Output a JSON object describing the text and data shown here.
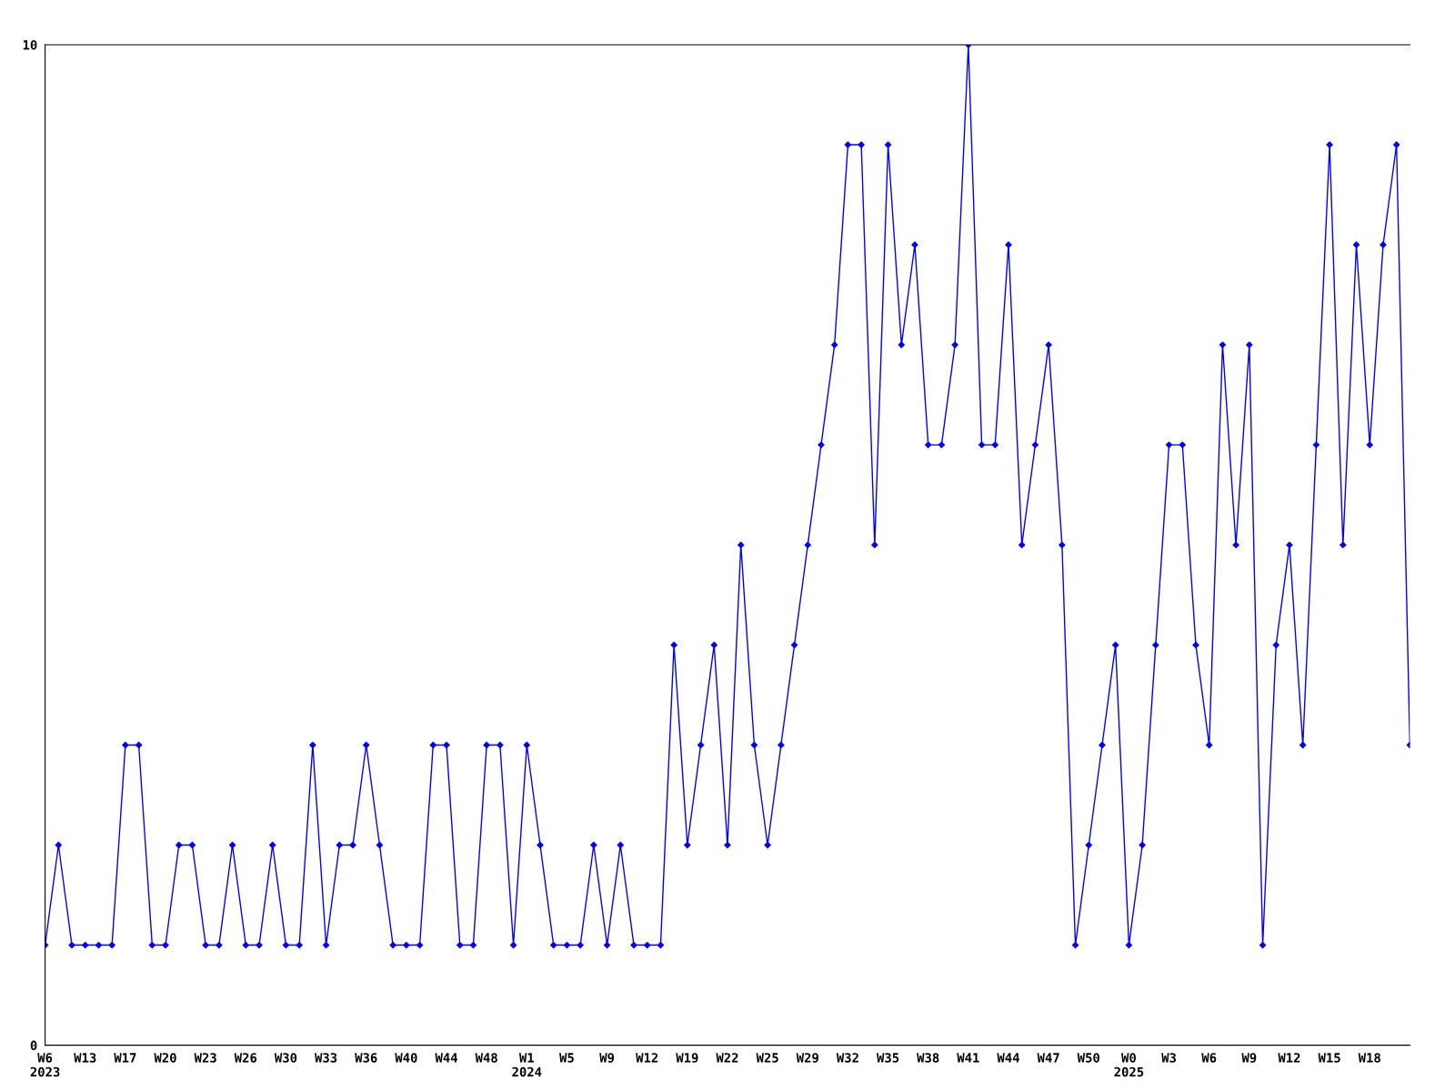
{
  "chart_data": {
    "type": "line",
    "categories": [
      "W6\n2023",
      null,
      null,
      "W13",
      null,
      null,
      "W17",
      null,
      null,
      "W20",
      null,
      null,
      "W23",
      null,
      null,
      "W26",
      null,
      null,
      "W30",
      null,
      null,
      "W33",
      null,
      null,
      "W36",
      null,
      null,
      "W40",
      null,
      null,
      "W44",
      null,
      null,
      "W48",
      null,
      null,
      "W1\n2024",
      null,
      null,
      "W5",
      null,
      null,
      "W9",
      null,
      null,
      "W12",
      null,
      null,
      "W19",
      null,
      null,
      "W22",
      null,
      null,
      "W25",
      null,
      null,
      "W29",
      null,
      null,
      "W32",
      null,
      null,
      "W35",
      null,
      null,
      "W38",
      null,
      null,
      "W41",
      null,
      null,
      "W44",
      null,
      null,
      "W47",
      null,
      null,
      "W50",
      null,
      null,
      "W0\n2025",
      null,
      null,
      "W3",
      null,
      null,
      "W6",
      null,
      null,
      "W9",
      null,
      null,
      "W12",
      null,
      null,
      "W15",
      null,
      null,
      "W18",
      null,
      null,
      null
    ],
    "series": [
      {
        "color": "#0000ff",
        "values": [
          1,
          2,
          1,
          1,
          1,
          1,
          3,
          3,
          1,
          1,
          2,
          2,
          1,
          1,
          2,
          1,
          1,
          2,
          1,
          1,
          3,
          1,
          2,
          2,
          3,
          2,
          1,
          1,
          1,
          3,
          3,
          1,
          1,
          3,
          3,
          1,
          3,
          2,
          1,
          1,
          1,
          2,
          1,
          2,
          1,
          1,
          1,
          4,
          2,
          3,
          4,
          2,
          5,
          3,
          2,
          3,
          4,
          5,
          6,
          7,
          9,
          9,
          5,
          9,
          7,
          8,
          6,
          6,
          7,
          10,
          6,
          6,
          8,
          5,
          6,
          7,
          5,
          1,
          2,
          3,
          4,
          1,
          2,
          4,
          6,
          6,
          4,
          3,
          7,
          5,
          7,
          1,
          4,
          5,
          3,
          6,
          9,
          5,
          8,
          6,
          8,
          9,
          3
        ]
      }
    ],
    "ylim": [
      0,
      10
    ],
    "yticks": [
      0,
      10
    ],
    "grid": false,
    "legend": false,
    "marker": "diamond",
    "line_style": "solid"
  }
}
